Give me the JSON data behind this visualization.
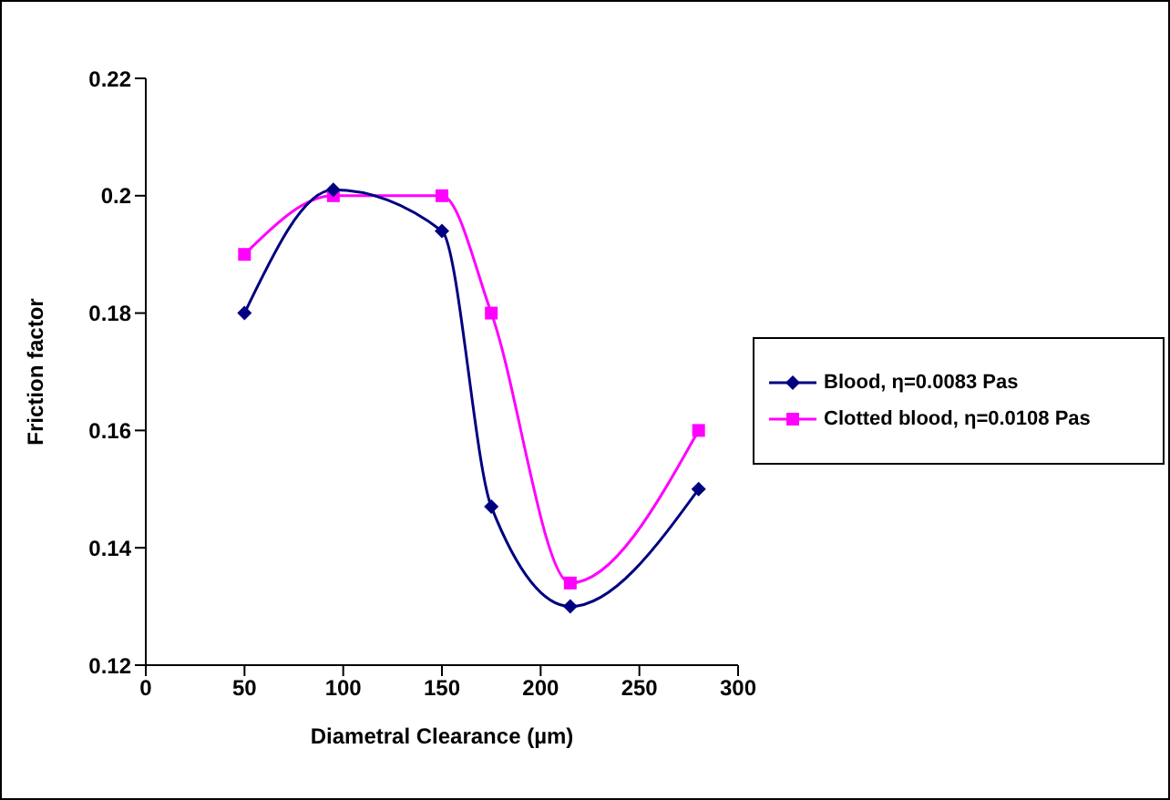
{
  "chart_data": {
    "type": "line",
    "xlabel": "Diametral Clearance (µm)",
    "ylabel": "Friction factor",
    "x": [
      50,
      95,
      150,
      175,
      215,
      280
    ],
    "series": [
      {
        "name": "Blood, η=0.0083 Pas",
        "color": "#000080",
        "marker": "diamond",
        "values": [
          0.18,
          0.201,
          0.194,
          0.147,
          0.13,
          0.15
        ]
      },
      {
        "name": "Clotted blood, η=0.0108 Pas",
        "color": "#ff00ff",
        "marker": "square",
        "values": [
          0.19,
          0.2,
          0.2,
          0.18,
          0.134,
          0.16
        ]
      }
    ],
    "xlim": [
      0,
      300
    ],
    "xticks": [
      0,
      50,
      100,
      150,
      200,
      250,
      300
    ],
    "ylim": [
      0.12,
      0.22
    ],
    "yticks": [
      0.12,
      0.14,
      0.16,
      0.18,
      0.2,
      0.22
    ],
    "grid": false,
    "legend": "right",
    "line_style": "solid"
  }
}
